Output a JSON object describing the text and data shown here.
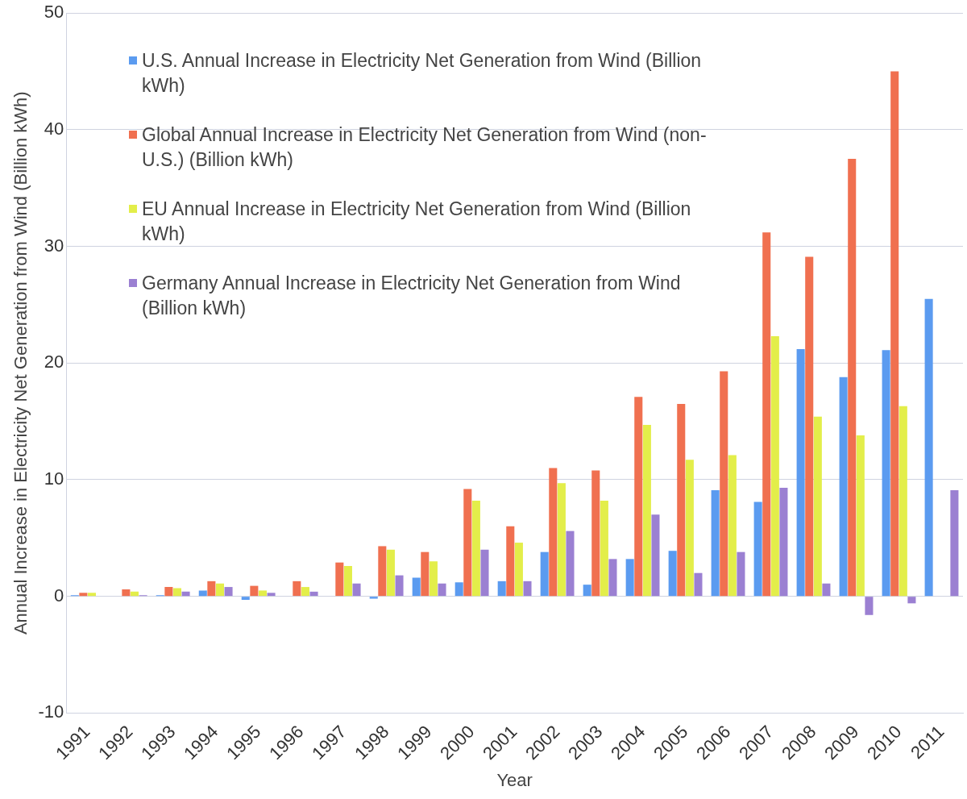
{
  "chart_data": {
    "type": "bar",
    "xlabel": "Year",
    "ylabel": "Annual Increase in Electricity Net Generation from Wind (Billion kWh)",
    "categories": [
      "1991",
      "1992",
      "1993",
      "1994",
      "1995",
      "1996",
      "1997",
      "1998",
      "1999",
      "2000",
      "2001",
      "2002",
      "2003",
      "2004",
      "2005",
      "2006",
      "2007",
      "2008",
      "2009",
      "2010",
      "2011"
    ],
    "series": [
      {
        "name": "U.S. Annual Increase in Electricity Net Generation from Wind (Billion kWh)",
        "color": "#5b9bf0",
        "values": [
          0.1,
          0,
          0.1,
          0.5,
          -0.3,
          0,
          0,
          -0.2,
          1.6,
          1.2,
          1.3,
          3.8,
          1.0,
          3.2,
          3.9,
          9.1,
          8.1,
          21.2,
          18.8,
          21.1,
          25.5
        ]
      },
      {
        "name": "Global Annual Increase in Electricity Net Generation from Wind (non-U.S.) (Billion kWh)",
        "color": "#f07050",
        "values": [
          0.3,
          0.6,
          0.8,
          1.3,
          0.9,
          1.3,
          2.9,
          4.3,
          3.8,
          9.2,
          6.0,
          11.0,
          10.8,
          17.1,
          16.5,
          19.3,
          31.2,
          29.1,
          37.5,
          45.0,
          null
        ]
      },
      {
        "name": "EU Annual Increase in Electricity Net Generation from Wind (Billion kWh)",
        "color": "#e3ee4a",
        "values": [
          0.3,
          0.4,
          0.7,
          1.1,
          0.5,
          0.8,
          2.6,
          4.0,
          3.0,
          8.2,
          4.6,
          9.7,
          8.2,
          14.7,
          11.7,
          12.1,
          22.3,
          15.4,
          13.8,
          16.3,
          null
        ]
      },
      {
        "name": "Germany Annual Increase in Electricity Net Generation from Wind (Billion kWh)",
        "color": "#9b80d2",
        "values": [
          0,
          0.1,
          0.4,
          0.8,
          0.3,
          0.4,
          1.1,
          1.8,
          1.1,
          4.0,
          1.3,
          5.6,
          3.2,
          7.0,
          2.0,
          3.8,
          9.3,
          1.1,
          -1.6,
          -0.6,
          9.1
        ]
      }
    ],
    "ylim": [
      -10,
      50
    ],
    "yticks": [
      -10,
      0,
      10,
      20,
      30,
      40,
      50
    ],
    "grid": "y",
    "legend": "top left"
  }
}
